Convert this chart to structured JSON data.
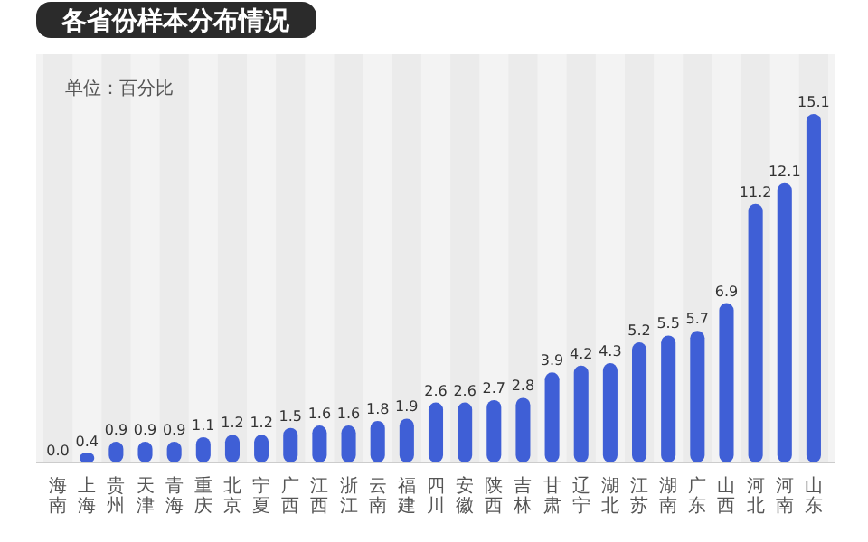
{
  "chart_data": {
    "type": "bar",
    "title": "各省份样本分布情况",
    "annotations": [
      "单位：百分比"
    ],
    "categories": [
      "海南",
      "上海",
      "贵州",
      "天津",
      "青海",
      "重庆",
      "北京",
      "宁夏",
      "广西",
      "江西",
      "浙江",
      "云南",
      "福建",
      "四川",
      "安徽",
      "陕西",
      "吉林",
      "甘肃",
      "辽宁",
      "湖北",
      "江苏",
      "湖南",
      "广东",
      "山西",
      "河北",
      "河南",
      "山东"
    ],
    "values": [
      0.0,
      0.4,
      0.9,
      0.9,
      0.9,
      1.1,
      1.2,
      1.2,
      1.5,
      1.6,
      1.6,
      1.8,
      1.9,
      2.6,
      2.6,
      2.7,
      2.8,
      3.9,
      4.2,
      4.3,
      5.2,
      5.5,
      5.7,
      6.9,
      11.2,
      12.1,
      15.1
    ],
    "value_labels": [
      "0.0",
      "0.4",
      "0.9",
      "0.9",
      "0.9",
      "1.1",
      "1.2",
      "1.2",
      "1.5",
      "1.6",
      "1.6",
      "1.8",
      "1.9",
      "2.6",
      "2.6",
      "2.7",
      "2.8",
      "3.9",
      "4.2",
      "4.3",
      "5.2",
      "5.5",
      "5.7",
      "6.9",
      "11.2",
      "12.1",
      "15.1"
    ],
    "color": "#3f5fd6"
  }
}
